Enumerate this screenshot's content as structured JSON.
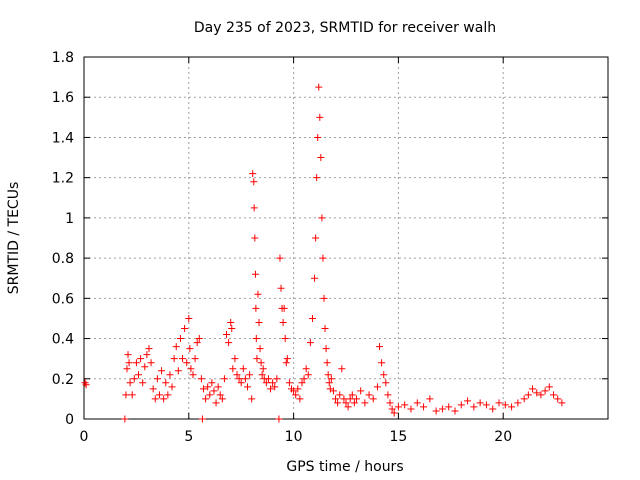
{
  "colors": {
    "marker": "#ff0000",
    "axis": "#000000",
    "grid": "#a0a0a0"
  },
  "chart_data": {
    "type": "scatter",
    "title": "Day 235 of 2023, SRMTID for receiver walh",
    "xlabel": "GPS time / hours",
    "ylabel": "SRMTID / TECUs",
    "xlim": [
      0,
      25
    ],
    "ylim": [
      0,
      1.8
    ],
    "xticks": [
      0,
      5,
      10,
      15,
      20
    ],
    "xtick_labels": [
      "0",
      "5",
      "10",
      "15",
      "20"
    ],
    "yticks": [
      0,
      0.2,
      0.4,
      0.6,
      0.8,
      1.0,
      1.2,
      1.4,
      1.6,
      1.8
    ],
    "ytick_labels": [
      "0",
      "0.2",
      "0.4",
      "0.6",
      "0.8",
      "1",
      "1.2",
      "1.4",
      "1.6",
      "1.8"
    ],
    "grid": true,
    "marker": "+",
    "series": [
      {
        "name": "SRMTID",
        "x": [
          0.05,
          0.1,
          1.95,
          2.0,
          2.05,
          2.1,
          2.15,
          2.2,
          2.3,
          2.4,
          2.5,
          2.6,
          2.7,
          2.8,
          2.9,
          3.0,
          3.1,
          3.2,
          3.3,
          3.4,
          3.5,
          3.6,
          3.7,
          3.8,
          3.9,
          4.0,
          4.1,
          4.2,
          4.3,
          4.4,
          4.5,
          4.6,
          4.7,
          4.8,
          4.9,
          5.0,
          5.05,
          5.1,
          5.2,
          5.3,
          5.4,
          5.5,
          5.6,
          5.65,
          5.7,
          5.8,
          5.9,
          6.0,
          6.1,
          6.2,
          6.3,
          6.4,
          6.5,
          6.6,
          6.7,
          6.8,
          6.9,
          7.0,
          7.05,
          7.1,
          7.2,
          7.3,
          7.4,
          7.5,
          7.6,
          7.7,
          7.8,
          7.9,
          8.0,
          8.05,
          8.1,
          8.12,
          8.15,
          8.18,
          8.2,
          8.22,
          8.25,
          8.3,
          8.35,
          8.4,
          8.45,
          8.5,
          8.55,
          8.6,
          8.7,
          8.8,
          8.9,
          9.0,
          9.1,
          9.2,
          9.3,
          9.35,
          9.4,
          9.45,
          9.5,
          9.55,
          9.6,
          9.65,
          9.7,
          9.8,
          9.9,
          10.0,
          10.1,
          10.2,
          10.3,
          10.4,
          10.5,
          10.6,
          10.7,
          10.8,
          10.9,
          11.0,
          11.05,
          11.1,
          11.15,
          11.2,
          11.25,
          11.3,
          11.35,
          11.4,
          11.45,
          11.5,
          11.55,
          11.6,
          11.65,
          11.7,
          11.75,
          11.8,
          11.9,
          12.0,
          12.1,
          12.2,
          12.3,
          12.4,
          12.5,
          12.6,
          12.7,
          12.8,
          12.9,
          13.0,
          13.2,
          13.4,
          13.6,
          13.8,
          14.0,
          14.1,
          14.2,
          14.3,
          14.4,
          14.5,
          14.6,
          14.7,
          14.8,
          15.0,
          15.3,
          15.6,
          15.9,
          16.2,
          16.5,
          16.8,
          17.1,
          17.4,
          17.7,
          18.0,
          18.3,
          18.6,
          18.9,
          19.2,
          19.5,
          19.8,
          20.1,
          20.4,
          20.7,
          21.0,
          21.2,
          21.4,
          21.6,
          21.8,
          22.0,
          22.2,
          22.4,
          22.6,
          22.8
        ],
        "y": [
          0.18,
          0.17,
          0.0,
          0.12,
          0.25,
          0.32,
          0.28,
          0.18,
          0.12,
          0.2,
          0.28,
          0.22,
          0.3,
          0.18,
          0.26,
          0.32,
          0.35,
          0.28,
          0.15,
          0.1,
          0.2,
          0.12,
          0.24,
          0.1,
          0.18,
          0.12,
          0.22,
          0.16,
          0.3,
          0.36,
          0.24,
          0.4,
          0.3,
          0.45,
          0.28,
          0.5,
          0.35,
          0.25,
          0.22,
          0.3,
          0.38,
          0.4,
          0.2,
          0.0,
          0.15,
          0.1,
          0.16,
          0.12,
          0.18,
          0.14,
          0.08,
          0.16,
          0.12,
          0.1,
          0.2,
          0.42,
          0.38,
          0.48,
          0.45,
          0.25,
          0.3,
          0.22,
          0.2,
          0.18,
          0.25,
          0.2,
          0.16,
          0.22,
          0.1,
          1.22,
          1.18,
          1.05,
          0.9,
          0.72,
          0.55,
          0.4,
          0.3,
          0.62,
          0.48,
          0.35,
          0.28,
          0.22,
          0.25,
          0.2,
          0.18,
          0.2,
          0.15,
          0.18,
          0.16,
          0.2,
          0.0,
          0.8,
          0.65,
          0.55,
          0.48,
          0.55,
          0.4,
          0.28,
          0.3,
          0.18,
          0.15,
          0.14,
          0.12,
          0.15,
          0.1,
          0.18,
          0.2,
          0.25,
          0.22,
          0.38,
          0.5,
          0.7,
          0.9,
          1.2,
          1.4,
          1.65,
          1.5,
          1.3,
          1.0,
          0.8,
          0.6,
          0.45,
          0.35,
          0.28,
          0.22,
          0.18,
          0.15,
          0.2,
          0.14,
          0.1,
          0.08,
          0.12,
          0.25,
          0.1,
          0.08,
          0.06,
          0.1,
          0.12,
          0.08,
          0.1,
          0.14,
          0.08,
          0.12,
          0.1,
          0.16,
          0.36,
          0.28,
          0.22,
          0.18,
          0.12,
          0.08,
          0.05,
          0.03,
          0.06,
          0.07,
          0.05,
          0.08,
          0.06,
          0.1,
          0.04,
          0.05,
          0.06,
          0.04,
          0.07,
          0.09,
          0.06,
          0.08,
          0.07,
          0.05,
          0.08,
          0.07,
          0.06,
          0.08,
          0.1,
          0.12,
          0.15,
          0.13,
          0.12,
          0.14,
          0.16,
          0.12,
          0.1,
          0.08
        ]
      }
    ]
  }
}
